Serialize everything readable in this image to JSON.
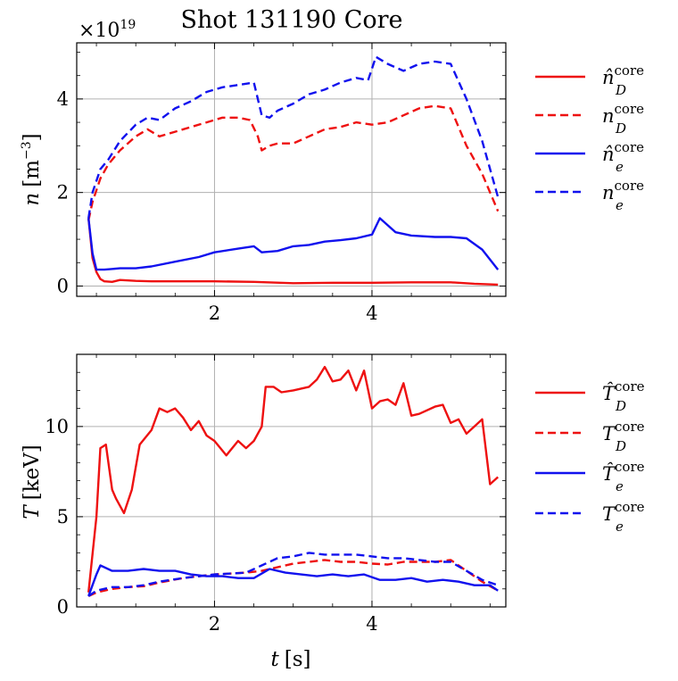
{
  "chart_data": [
    {
      "type": "line",
      "title": "Shot 131190 Core",
      "exponent_label": "×10",
      "exponent_power": "19",
      "xlabel": "",
      "ylabel_main": "n",
      "ylabel_unit": "[m",
      "ylabel_unit_power": "−3",
      "ylabel_unit_close": "]",
      "xlim": [
        0.25,
        5.7
      ],
      "ylim": [
        -0.22,
        5.2
      ],
      "xticks": [
        2,
        4
      ],
      "yticks": [
        0,
        2,
        4
      ],
      "legend_placement": "right",
      "series": [
        {
          "name": "n̂_D^core",
          "legend_base": "n̂",
          "legend_sub": "D",
          "legend_sup": "core",
          "color": "#ee1111",
          "dashed": false,
          "x": [
            0.4,
            0.45,
            0.5,
            0.55,
            0.6,
            0.7,
            0.8,
            0.9,
            1.0,
            1.2,
            1.5,
            2.0,
            2.5,
            3.0,
            3.5,
            4.0,
            4.5,
            5.0,
            5.3,
            5.6
          ],
          "y": [
            1.45,
            0.6,
            0.3,
            0.15,
            0.1,
            0.09,
            0.13,
            0.12,
            0.11,
            0.1,
            0.1,
            0.1,
            0.09,
            0.06,
            0.07,
            0.07,
            0.08,
            0.08,
            0.05,
            0.03
          ]
        },
        {
          "name": "n_D^core",
          "legend_base": "n",
          "legend_sub": "D",
          "legend_sup": "core",
          "color": "#ee1111",
          "dashed": true,
          "x": [
            0.4,
            0.45,
            0.55,
            0.65,
            0.8,
            1.0,
            1.15,
            1.3,
            1.5,
            1.7,
            1.9,
            2.1,
            2.3,
            2.45,
            2.55,
            2.6,
            2.7,
            2.8,
            3.0,
            3.2,
            3.4,
            3.6,
            3.8,
            4.0,
            4.2,
            4.4,
            4.6,
            4.8,
            5.0,
            5.2,
            5.4,
            5.6
          ],
          "y": [
            1.4,
            1.8,
            2.3,
            2.6,
            2.9,
            3.2,
            3.35,
            3.2,
            3.3,
            3.4,
            3.5,
            3.6,
            3.6,
            3.55,
            3.2,
            2.9,
            3.0,
            3.05,
            3.05,
            3.2,
            3.35,
            3.4,
            3.5,
            3.45,
            3.5,
            3.65,
            3.8,
            3.85,
            3.8,
            3.0,
            2.4,
            1.6
          ]
        },
        {
          "name": "n̂_e^core",
          "legend_base": "n̂",
          "legend_sub": "e",
          "legend_sup": "core",
          "color": "#1111ee",
          "dashed": false,
          "x": [
            0.4,
            0.45,
            0.5,
            0.6,
            0.8,
            1.0,
            1.2,
            1.5,
            1.8,
            2.0,
            2.3,
            2.5,
            2.6,
            2.8,
            3.0,
            3.2,
            3.4,
            3.6,
            3.8,
            4.0,
            4.1,
            4.3,
            4.5,
            4.8,
            5.0,
            5.2,
            5.4,
            5.6
          ],
          "y": [
            1.45,
            0.7,
            0.35,
            0.35,
            0.38,
            0.38,
            0.42,
            0.52,
            0.62,
            0.72,
            0.8,
            0.85,
            0.72,
            0.75,
            0.85,
            0.88,
            0.95,
            0.98,
            1.02,
            1.1,
            1.45,
            1.15,
            1.08,
            1.05,
            1.05,
            1.02,
            0.78,
            0.35
          ]
        },
        {
          "name": "n_e^core",
          "legend_base": "n",
          "legend_sub": "e",
          "legend_sup": "core",
          "color": "#1111ee",
          "dashed": true,
          "x": [
            0.4,
            0.45,
            0.55,
            0.65,
            0.8,
            1.0,
            1.15,
            1.3,
            1.5,
            1.7,
            1.9,
            2.1,
            2.3,
            2.5,
            2.6,
            2.7,
            2.8,
            3.0,
            3.2,
            3.4,
            3.6,
            3.8,
            3.95,
            4.05,
            4.2,
            4.4,
            4.6,
            4.8,
            5.0,
            5.2,
            5.4,
            5.6
          ],
          "y": [
            1.45,
            2.0,
            2.5,
            2.7,
            3.1,
            3.45,
            3.6,
            3.55,
            3.8,
            3.95,
            4.15,
            4.25,
            4.3,
            4.35,
            3.65,
            3.6,
            3.75,
            3.9,
            4.1,
            4.2,
            4.35,
            4.45,
            4.4,
            4.9,
            4.75,
            4.6,
            4.75,
            4.8,
            4.75,
            4.0,
            3.1,
            1.9
          ]
        }
      ]
    },
    {
      "type": "line",
      "title": "",
      "xlabel_main": "t",
      "xlabel_unit": "[s]",
      "ylabel_main": "T",
      "ylabel_unit": "[keV]",
      "xlim": [
        0.25,
        5.7
      ],
      "ylim": [
        0,
        14
      ],
      "xticks": [
        2,
        4
      ],
      "yticks": [
        0,
        5,
        10
      ],
      "legend_placement": "right",
      "series": [
        {
          "name": "T̂_D^core",
          "legend_base": "T̂",
          "legend_sub": "D",
          "legend_sup": "core",
          "color": "#ee1111",
          "dashed": false,
          "x": [
            0.4,
            0.5,
            0.55,
            0.62,
            0.7,
            0.75,
            0.85,
            0.95,
            1.05,
            1.2,
            1.3,
            1.4,
            1.5,
            1.6,
            1.7,
            1.8,
            1.9,
            2.0,
            2.15,
            2.3,
            2.4,
            2.5,
            2.6,
            2.65,
            2.75,
            2.85,
            3.0,
            3.2,
            3.3,
            3.4,
            3.5,
            3.6,
            3.7,
            3.8,
            3.9,
            4.0,
            4.1,
            4.2,
            4.3,
            4.4,
            4.5,
            4.6,
            4.8,
            4.9,
            5.0,
            5.1,
            5.2,
            5.3,
            5.4,
            5.5,
            5.6
          ],
          "y": [
            0.8,
            5.0,
            8.8,
            9.0,
            6.5,
            6.0,
            5.2,
            6.5,
            9.0,
            9.8,
            11.0,
            10.8,
            11.0,
            10.5,
            9.8,
            10.3,
            9.5,
            9.2,
            8.4,
            9.2,
            8.8,
            9.2,
            10.0,
            12.2,
            12.2,
            11.9,
            12.0,
            12.2,
            12.6,
            13.3,
            12.5,
            12.6,
            13.1,
            12.0,
            13.1,
            11.0,
            11.4,
            11.5,
            11.2,
            12.4,
            10.6,
            10.7,
            11.1,
            11.2,
            10.2,
            10.4,
            9.6,
            10.0,
            10.4,
            6.8,
            7.2
          ]
        },
        {
          "name": "T_D^core",
          "legend_base": "T",
          "legend_sub": "D",
          "legend_sup": "core",
          "color": "#ee1111",
          "dashed": true,
          "x": [
            0.4,
            0.5,
            0.7,
            0.9,
            1.1,
            1.3,
            1.6,
            2.0,
            2.4,
            2.6,
            2.8,
            3.0,
            3.2,
            3.4,
            3.6,
            3.8,
            4.0,
            4.2,
            4.4,
            4.6,
            4.8,
            5.0,
            5.2,
            5.4,
            5.6
          ],
          "y": [
            0.6,
            0.8,
            1.0,
            1.1,
            1.15,
            1.35,
            1.6,
            1.8,
            1.9,
            2.0,
            2.2,
            2.4,
            2.5,
            2.6,
            2.5,
            2.5,
            2.4,
            2.35,
            2.5,
            2.5,
            2.5,
            2.6,
            2.0,
            1.4,
            0.9
          ]
        },
        {
          "name": "T̂_e^core",
          "legend_base": "T̂",
          "legend_sub": "e",
          "legend_sup": "core",
          "color": "#1111ee",
          "dashed": false,
          "x": [
            0.4,
            0.5,
            0.55,
            0.7,
            0.9,
            1.1,
            1.3,
            1.5,
            1.7,
            1.9,
            2.1,
            2.3,
            2.5,
            2.7,
            2.9,
            3.1,
            3.3,
            3.5,
            3.7,
            3.9,
            4.1,
            4.3,
            4.5,
            4.7,
            4.9,
            5.1,
            5.3,
            5.5,
            5.6
          ],
          "y": [
            0.6,
            1.8,
            2.3,
            2.0,
            2.0,
            2.1,
            2.0,
            2.0,
            1.8,
            1.7,
            1.7,
            1.6,
            1.6,
            2.1,
            1.9,
            1.8,
            1.7,
            1.8,
            1.7,
            1.8,
            1.5,
            1.5,
            1.6,
            1.4,
            1.5,
            1.4,
            1.2,
            1.2,
            0.9
          ]
        },
        {
          "name": "T_e^core",
          "legend_base": "T",
          "legend_sub": "e",
          "legend_sup": "core",
          "color": "#1111ee",
          "dashed": true,
          "x": [
            0.4,
            0.5,
            0.7,
            0.9,
            1.1,
            1.3,
            1.6,
            2.0,
            2.4,
            2.6,
            2.8,
            3.0,
            3.2,
            3.4,
            3.6,
            3.8,
            4.0,
            4.2,
            4.4,
            4.6,
            4.8,
            5.0,
            5.2,
            5.4,
            5.6
          ],
          "y": [
            0.6,
            0.9,
            1.1,
            1.1,
            1.2,
            1.4,
            1.6,
            1.8,
            1.9,
            2.3,
            2.7,
            2.8,
            3.0,
            2.9,
            2.9,
            2.9,
            2.8,
            2.7,
            2.7,
            2.6,
            2.5,
            2.5,
            2.0,
            1.5,
            1.2
          ]
        }
      ]
    }
  ]
}
